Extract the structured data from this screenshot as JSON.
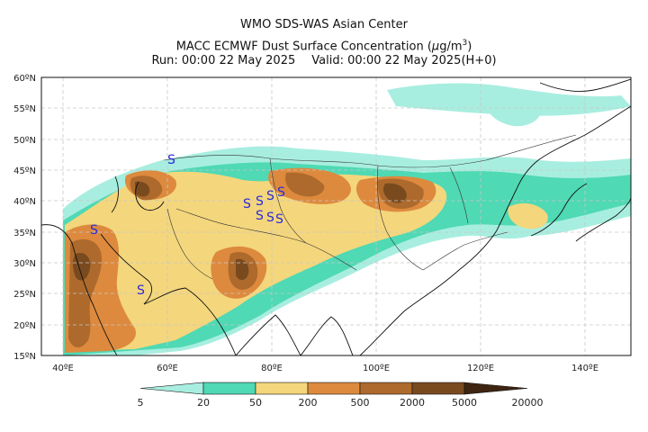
{
  "header": {
    "center": "WMO SDS-WAS Asian Center",
    "product": "MACC ECMWF Dust Surface Concentration (",
    "unit_mu": "μ",
    "unit_rest": "g/m",
    "unit_exp": "3",
    "unit_close": ")",
    "run": "Run: 00:00 22 May 2025",
    "valid": "Valid: 00:00 22 May 2025(H+0)"
  },
  "axes": {
    "lat_labels": [
      "60ºN",
      "55ºN",
      "50ºN",
      "45ºN",
      "40ºN",
      "35ºN",
      "30ºN",
      "25ºN",
      "20ºN",
      "15ºN"
    ],
    "lon_labels": [
      "40ºE",
      "60ºE",
      "80ºE",
      "100ºE",
      "120ºE",
      "140ºE"
    ]
  },
  "colorbar": {
    "levels": [
      "5",
      "20",
      "50",
      "200",
      "500",
      "2000",
      "5000",
      "20000"
    ],
    "colors": [
      "#a8eee0",
      "#4fd9b4",
      "#f4d67c",
      "#dd8a3e",
      "#ad6a2c",
      "#7a4a1f",
      "#3e2411"
    ]
  },
  "map_symbol": "S",
  "colors": {
    "land_line": "#111111",
    "grid": "#c8c8c8",
    "symbol": "#2b2bd8"
  }
}
